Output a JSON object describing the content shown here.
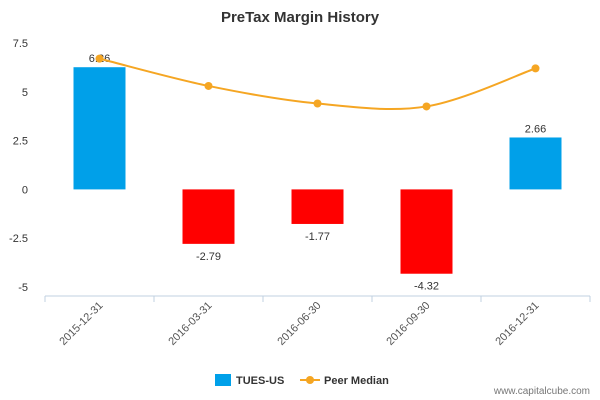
{
  "chart_data": {
    "type": "bar",
    "title": "PreTax Margin History",
    "categories": [
      "2015-12-31",
      "2016-03-31",
      "2016-06-30",
      "2016-09-30",
      "2016-12-31"
    ],
    "series": [
      {
        "name": "TUES-US",
        "type": "bar",
        "values": [
          6.26,
          -2.79,
          -1.77,
          -4.32,
          2.66
        ],
        "positive_color": "#00a0e9",
        "negative_color": "#ff0000"
      },
      {
        "name": "Peer Median",
        "type": "line",
        "values": [
          6.7,
          5.3,
          4.4,
          4.25,
          6.2
        ],
        "color": "#f5a623"
      }
    ],
    "data_labels": [
      "6.26",
      "-2.79",
      "-1.77",
      "-4.32",
      "2.66"
    ],
    "yticks": [
      "7.5",
      "5",
      "2.5",
      "0",
      "-2.5",
      "-5"
    ],
    "ytick_values": [
      7.5,
      5,
      2.5,
      0,
      -2.5,
      -5
    ],
    "ylim": [
      -5,
      7.5
    ],
    "grid": false,
    "legend_position": "bottom",
    "xlabel": "",
    "ylabel": ""
  },
  "watermark": "www.capitalcube.com"
}
